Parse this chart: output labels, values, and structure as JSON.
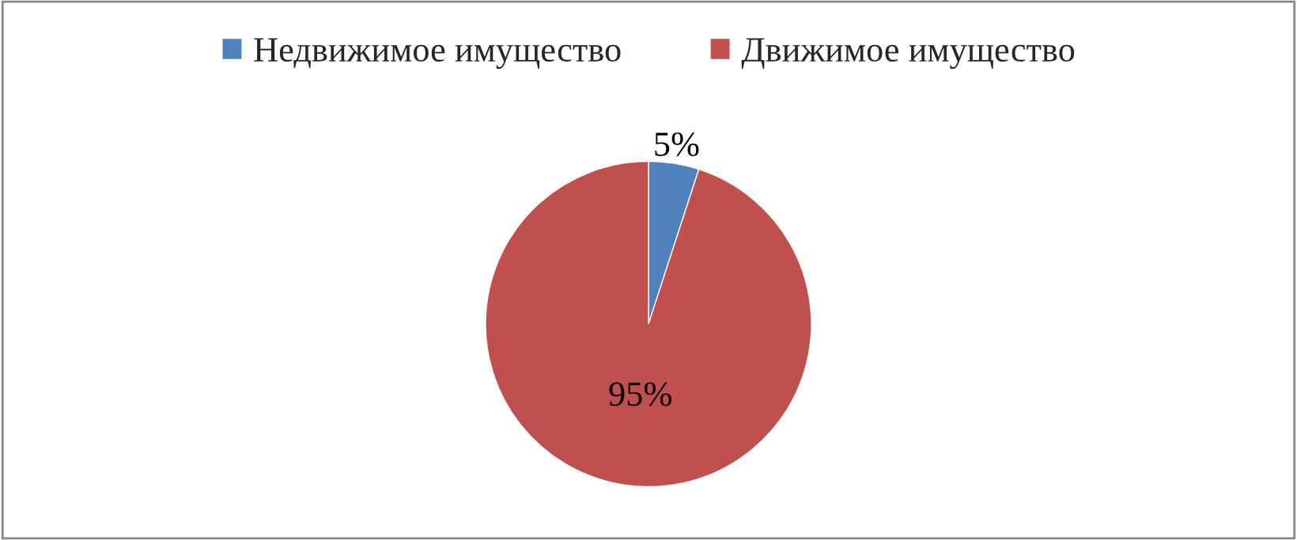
{
  "chart_data": {
    "type": "pie",
    "categories": [
      "Недвижимое имущество",
      "Движимое имущество"
    ],
    "values": [
      5,
      95
    ],
    "colors": [
      "#4f81bd",
      "#c0504d"
    ],
    "value_labels": [
      "5%",
      "95%"
    ],
    "legend": "top"
  }
}
